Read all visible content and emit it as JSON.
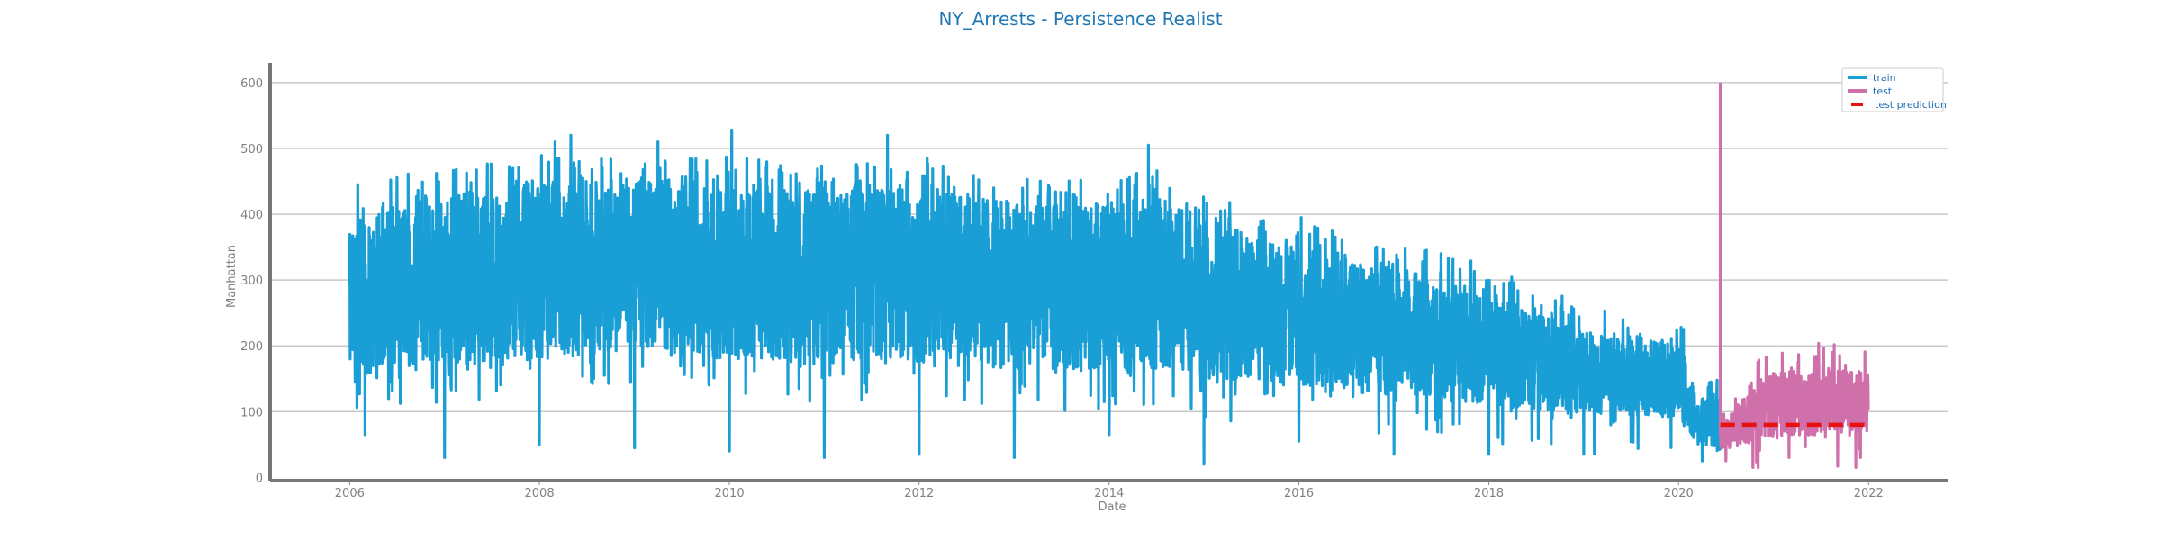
{
  "chart_data": {
    "type": "line",
    "title": "NY_Arrests - Persistence Realist",
    "xlabel": "Date",
    "ylabel": "Manhattan",
    "x_axis": {
      "type": "date",
      "range": [
        "2005-03-01",
        "2022-11-01"
      ],
      "ticks": [
        "2006",
        "2008",
        "2010",
        "2012",
        "2014",
        "2016",
        "2018",
        "2020",
        "2022"
      ]
    },
    "y_axis": {
      "range": [
        -5,
        630
      ],
      "ticks": [
        0,
        100,
        200,
        300,
        400,
        500,
        600
      ]
    },
    "grid": "horizontal",
    "legend": {
      "placement": "top-right",
      "entries": [
        {
          "label": "train",
          "color": "#1a9ed6",
          "style": "solid"
        },
        {
          "label": "test",
          "color": "#d070aa",
          "style": "solid"
        },
        {
          "label": "test prediction",
          "color": "#e8110f",
          "style": "dashed"
        }
      ]
    },
    "series": [
      {
        "name": "train",
        "color": "#1a9ed6",
        "period": [
          "2006-01-01",
          "2020-06-10"
        ],
        "envelope": [
          {
            "date": "2006-01-01",
            "low": 140,
            "high": 370
          },
          {
            "date": "2006-07-01",
            "low": 170,
            "high": 420
          },
          {
            "date": "2007-01-01",
            "low": 170,
            "high": 430
          },
          {
            "date": "2007-07-01",
            "low": 175,
            "high": 440
          },
          {
            "date": "2008-01-01",
            "low": 180,
            "high": 450
          },
          {
            "date": "2008-07-01",
            "low": 180,
            "high": 450
          },
          {
            "date": "2009-01-01",
            "low": 185,
            "high": 455
          },
          {
            "date": "2009-07-01",
            "low": 185,
            "high": 460
          },
          {
            "date": "2010-01-01",
            "low": 180,
            "high": 450
          },
          {
            "date": "2010-07-01",
            "low": 175,
            "high": 440
          },
          {
            "date": "2011-01-01",
            "low": 170,
            "high": 435
          },
          {
            "date": "2011-07-01",
            "low": 175,
            "high": 440
          },
          {
            "date": "2012-01-01",
            "low": 175,
            "high": 440
          },
          {
            "date": "2012-07-01",
            "low": 170,
            "high": 430
          },
          {
            "date": "2013-01-01",
            "low": 165,
            "high": 420
          },
          {
            "date": "2013-07-01",
            "low": 160,
            "high": 410
          },
          {
            "date": "2014-01-01",
            "low": 165,
            "high": 420
          },
          {
            "date": "2014-07-01",
            "low": 165,
            "high": 430
          },
          {
            "date": "2014-12-31",
            "low": 160,
            "high": 410
          },
          {
            "date": "2015-01-10",
            "low": 140,
            "high": 390
          },
          {
            "date": "2015-07-01",
            "low": 150,
            "high": 370
          },
          {
            "date": "2016-01-01",
            "low": 140,
            "high": 350
          },
          {
            "date": "2016-07-01",
            "low": 130,
            "high": 330
          },
          {
            "date": "2017-01-01",
            "low": 125,
            "high": 320
          },
          {
            "date": "2017-07-01",
            "low": 120,
            "high": 305
          },
          {
            "date": "2018-01-01",
            "low": 110,
            "high": 280
          },
          {
            "date": "2018-07-01",
            "low": 100,
            "high": 250
          },
          {
            "date": "2019-01-01",
            "low": 95,
            "high": 225
          },
          {
            "date": "2019-07-01",
            "low": 95,
            "high": 215
          },
          {
            "date": "2020-01-01",
            "low": 90,
            "high": 205
          },
          {
            "date": "2020-03-15",
            "low": 50,
            "high": 120
          },
          {
            "date": "2020-06-10",
            "low": 40,
            "high": 120
          }
        ],
        "highs": [
          {
            "date": "2006-02-01",
            "value": 445
          },
          {
            "date": "2007-02-15",
            "value": 468
          },
          {
            "date": "2008-03-01",
            "value": 510
          },
          {
            "date": "2008-05-01",
            "value": 520
          },
          {
            "date": "2009-04-01",
            "value": 510
          },
          {
            "date": "2010-01-10",
            "value": 528
          },
          {
            "date": "2011-09-01",
            "value": 520
          },
          {
            "date": "2012-02-01",
            "value": 485
          },
          {
            "date": "2014-06-01",
            "value": 505
          },
          {
            "date": "2016-01-10",
            "value": 395
          },
          {
            "date": "2017-07-01",
            "value": 340
          },
          {
            "date": "2019-06-01",
            "value": 240
          },
          {
            "date": "2020-01-20",
            "value": 225
          }
        ],
        "lows": [
          {
            "date": "2006-03-01",
            "value": 65
          },
          {
            "date": "2007-01-01",
            "value": 30
          },
          {
            "date": "2008-01-01",
            "value": 50
          },
          {
            "date": "2009-01-01",
            "value": 45
          },
          {
            "date": "2010-01-01",
            "value": 40
          },
          {
            "date": "2011-01-01",
            "value": 30
          },
          {
            "date": "2012-01-01",
            "value": 35
          },
          {
            "date": "2013-01-01",
            "value": 30
          },
          {
            "date": "2014-01-01",
            "value": 65
          },
          {
            "date": "2015-01-01",
            "value": 20
          },
          {
            "date": "2016-01-01",
            "value": 55
          },
          {
            "date": "2017-01-01",
            "value": 35
          },
          {
            "date": "2018-01-01",
            "value": 35
          },
          {
            "date": "2019-01-01",
            "value": 35
          },
          {
            "date": "2020-04-01",
            "value": 25
          }
        ]
      },
      {
        "name": "test",
        "color": "#d070aa",
        "period": [
          "2020-06-10",
          "2021-12-31"
        ],
        "spike": {
          "date": "2020-06-10",
          "value": 600
        },
        "envelope": [
          {
            "date": "2020-06-12",
            "low": 40,
            "high": 80
          },
          {
            "date": "2020-09-01",
            "low": 50,
            "high": 120
          },
          {
            "date": "2021-01-01",
            "low": 60,
            "high": 160
          },
          {
            "date": "2021-07-01",
            "low": 65,
            "high": 165
          },
          {
            "date": "2021-12-31",
            "low": 65,
            "high": 160
          }
        ],
        "highs": [
          {
            "date": "2020-11-01",
            "value": 175
          },
          {
            "date": "2021-08-15",
            "value": 190
          }
        ],
        "lows": [
          {
            "date": "2020-07-01",
            "value": 25
          },
          {
            "date": "2021-03-01",
            "value": 30
          },
          {
            "date": "2021-12-01",
            "value": 30
          }
        ]
      },
      {
        "name": "test prediction",
        "color": "#e8110f",
        "style": "dashed",
        "points": [
          {
            "date": "2020-06-10",
            "value": 80
          },
          {
            "date": "2021-12-31",
            "value": 80
          }
        ]
      }
    ]
  }
}
